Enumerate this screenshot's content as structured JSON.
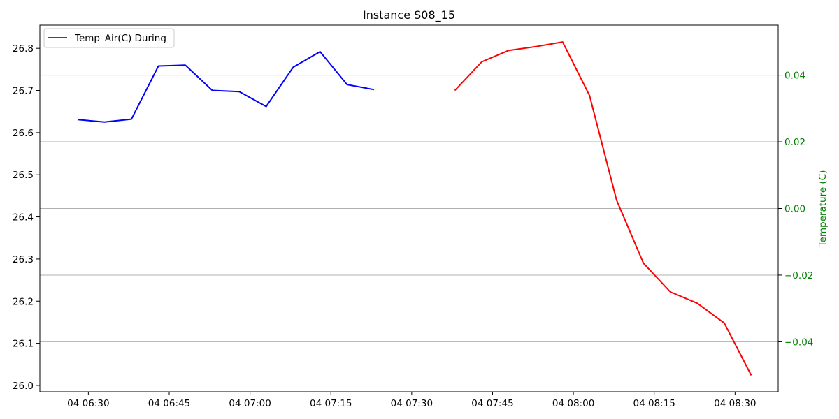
{
  "chart_data": {
    "type": "line",
    "title": "Instance S08_15",
    "xlabel": "",
    "ylabel": "",
    "y2label": "Temperature (C)",
    "x_tick_labels": [
      "04 06:30",
      "04 06:45",
      "04 07:00",
      "04 07:15",
      "04 07:30",
      "04 07:45",
      "04 08:00",
      "04 08:15",
      "04 08:30"
    ],
    "x_ticks": [
      "06:30",
      "06:45",
      "07:00",
      "07:15",
      "07:30",
      "07:45",
      "08:00",
      "08:15",
      "08:30"
    ],
    "xlim": [
      "06:21",
      "08:38"
    ],
    "ylim": [
      25.985,
      26.855
    ],
    "yticks": [
      26.0,
      26.1,
      26.2,
      26.3,
      26.4,
      26.5,
      26.6,
      26.7,
      26.8
    ],
    "ytick_labels": [
      "26.0",
      "26.1",
      "26.2",
      "26.3",
      "26.4",
      "26.5",
      "26.6",
      "26.7",
      "26.8"
    ],
    "y2lim": [
      -0.055,
      0.055
    ],
    "y2ticks": [
      -0.04,
      -0.02,
      0.0,
      0.02,
      0.04
    ],
    "y2tick_labels": [
      "−0.04",
      "−0.02",
      "0.00",
      "0.02",
      "0.04"
    ],
    "grid": "horizontal lines at right-axis ticks",
    "legend": {
      "position": "top-left",
      "entries": [
        "Temp_Air(C) During"
      ]
    },
    "series": [
      {
        "color": "#0000ff",
        "x": [
          "06:28",
          "06:33",
          "06:38",
          "06:43",
          "06:48",
          "06:53",
          "06:58",
          "07:03",
          "07:08",
          "07:13",
          "07:18",
          "07:23"
        ],
        "values": [
          26.631,
          26.625,
          26.632,
          26.758,
          26.76,
          26.7,
          26.697,
          26.662,
          26.755,
          26.792,
          26.714,
          26.702
        ]
      },
      {
        "color": "#ff0000",
        "x": [
          "07:38",
          "07:43",
          "07:48",
          "07:53",
          "07:58",
          "08:03",
          "08:08",
          "08:13",
          "08:18",
          "08:23",
          "08:28",
          "08:33"
        ],
        "values": [
          26.7,
          26.768,
          26.795,
          26.804,
          26.815,
          26.688,
          26.44,
          26.29,
          26.222,
          26.195,
          26.148,
          26.024
        ]
      },
      {
        "name": "Temp_Air(C) During",
        "color": "#008000",
        "x": [],
        "values": []
      }
    ],
    "colors": {
      "right_axis": "#008000",
      "grid": "#b0b0b0",
      "axes": "#000000"
    }
  }
}
